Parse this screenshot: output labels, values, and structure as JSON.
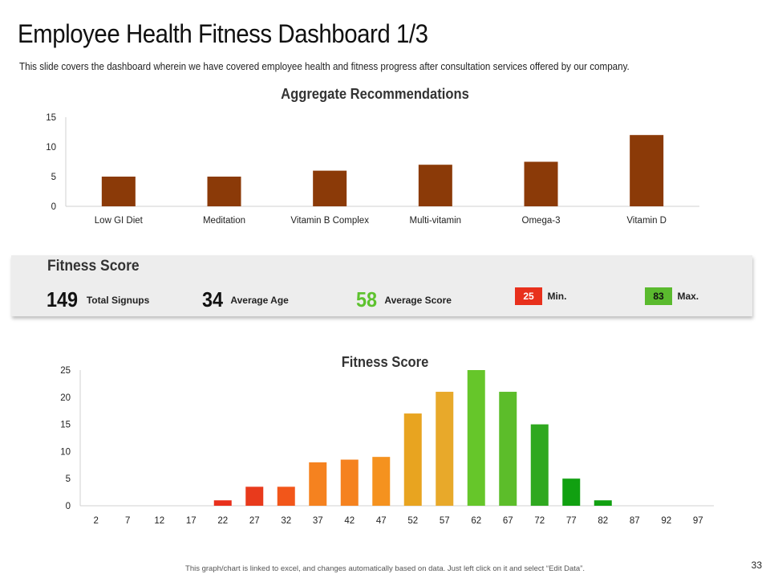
{
  "header": {
    "title": "Employee Health Fitness Dashboard 1/3",
    "subtitle": "This slide covers the dashboard wherein we have covered employee health and fitness progress after consultation services offered by our company."
  },
  "chart_data": [
    {
      "type": "bar",
      "title": "Aggregate Recommendations",
      "categories": [
        "Low GI Diet",
        "Meditation",
        "Vitamin B Complex",
        "Multi-vitamin",
        "Omega-3",
        "Vitamin D"
      ],
      "values": [
        5,
        5,
        6,
        7,
        7.5,
        12
      ],
      "yticks": [
        0,
        5,
        10,
        15
      ],
      "ylim": [
        0,
        15
      ],
      "xlabel": "",
      "ylabel": "",
      "grid": false,
      "color": "#8B3A08"
    },
    {
      "type": "bar",
      "title": "Fitness Score",
      "categories": [
        "2",
        "7",
        "12",
        "17",
        "22",
        "27",
        "32",
        "37",
        "42",
        "47",
        "52",
        "57",
        "62",
        "67",
        "72",
        "77",
        "82",
        "87",
        "92",
        "97"
      ],
      "values": [
        0,
        0,
        0,
        0,
        1,
        3.5,
        3.5,
        8,
        8.5,
        9,
        17,
        21,
        25,
        21,
        15,
        5,
        1,
        0,
        0,
        0
      ],
      "colors": [
        "#e8301c",
        "#e8301c",
        "#e8301c",
        "#e8301c",
        "#e8301c",
        "#e83a1c",
        "#f2561a",
        "#f5821f",
        "#f5821f",
        "#f5921f",
        "#e8a420",
        "#e8a92a",
        "#66c62a",
        "#5cbd2a",
        "#2fa81f",
        "#11a011",
        "#11a011",
        "#11a011",
        "#11a011",
        "#11a011"
      ],
      "yticks": [
        0,
        5,
        10,
        15,
        20,
        25
      ],
      "ylim": [
        0,
        25
      ],
      "xlabel": "",
      "ylabel": "",
      "grid": false
    }
  ],
  "fitness_panel": {
    "title": "Fitness Score",
    "total_signups": {
      "value": "149",
      "label": "Total Signups"
    },
    "average_age": {
      "value": "34",
      "label": "Average Age"
    },
    "average_score": {
      "value": "58",
      "label": "Average Score",
      "color": "#5dc22e"
    },
    "min": {
      "value": "25",
      "label": "Min.",
      "color": "#e8301c"
    },
    "max": {
      "value": "83",
      "label": "Max.",
      "color": "#5aba2e"
    }
  },
  "footer": {
    "note": "This graph/chart is linked to excel, and changes automatically  based on data. Just left click on it and select “Edit Data”.",
    "page_number": "33"
  }
}
